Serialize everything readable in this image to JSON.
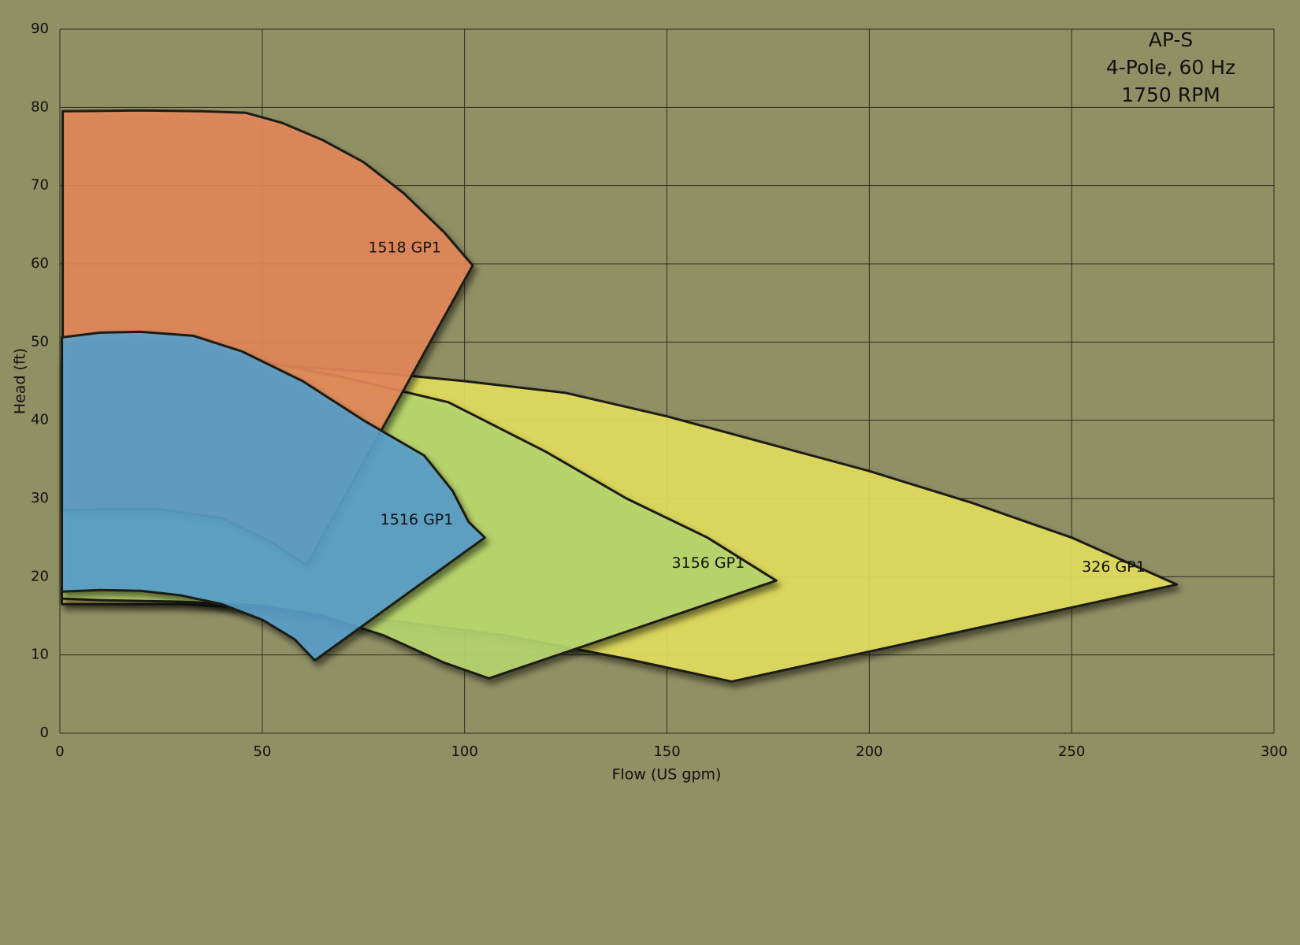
{
  "chart_data": {
    "type": "region",
    "title": [
      "AP-S",
      "4-Pole, 60 Hz",
      "1750 RPM"
    ],
    "x_label": "Flow (US gpm)",
    "y_label": "Head (ft)",
    "xlim": [
      0,
      300
    ],
    "xticks": [
      0,
      50,
      100,
      150,
      200,
      250,
      300
    ],
    "ylim": [
      0,
      90
    ],
    "yticks": [
      0,
      10,
      20,
      30,
      40,
      50,
      60,
      70,
      80,
      90
    ],
    "grid": true,
    "series": [
      {
        "name": "326 GP1",
        "color": "#e6e05e",
        "x": [
          0.5,
          30,
          55,
          80,
          100,
          125,
          150,
          175,
          200,
          225,
          250,
          276,
          166,
          140,
          110,
          80,
          55,
          30,
          0.5
        ],
        "y": [
          47.8,
          47.8,
          47,
          46,
          45,
          43.5,
          40.5,
          37,
          33.5,
          29.5,
          25,
          19,
          6.6,
          9.5,
          12.5,
          14.5,
          15.8,
          16.5,
          16.5
        ]
      },
      {
        "name": "3156 GP1",
        "color": "#bad870",
        "x": [
          0.5,
          10,
          30,
          50,
          70,
          96,
          120,
          140,
          160,
          177,
          106,
          95,
          80,
          65,
          50,
          30,
          10,
          0.5
        ],
        "y": [
          48,
          47.8,
          48,
          47.5,
          45.5,
          42.3,
          36,
          30,
          25,
          19.5,
          7,
          9,
          12.5,
          15,
          16.3,
          16.8,
          17,
          17.2
        ]
      },
      {
        "name": "1518 GP1",
        "color": "#e6895a",
        "x": [
          0.7,
          20,
          35,
          46,
          55,
          65,
          75,
          85,
          95,
          102,
          61,
          52,
          40,
          25,
          10,
          0.7
        ],
        "y": [
          79.5,
          79.6,
          79.5,
          79.3,
          78,
          75.8,
          73,
          69,
          64,
          59.8,
          21.5,
          24.5,
          27.5,
          28.6,
          28.6,
          28.5
        ]
      },
      {
        "name": "1516 GP1",
        "color": "#5aa0cc",
        "x": [
          0.5,
          10,
          20,
          33,
          45,
          60,
          75,
          90,
          97,
          101,
          105,
          63,
          58,
          50,
          40,
          30,
          20,
          10,
          0.5
        ],
        "y": [
          50.6,
          51.2,
          51.3,
          50.8,
          48.8,
          45,
          40,
          35.5,
          31,
          27,
          25,
          9.3,
          12,
          14.5,
          16.5,
          17.6,
          18.2,
          18.3,
          18.1
        ]
      }
    ]
  }
}
